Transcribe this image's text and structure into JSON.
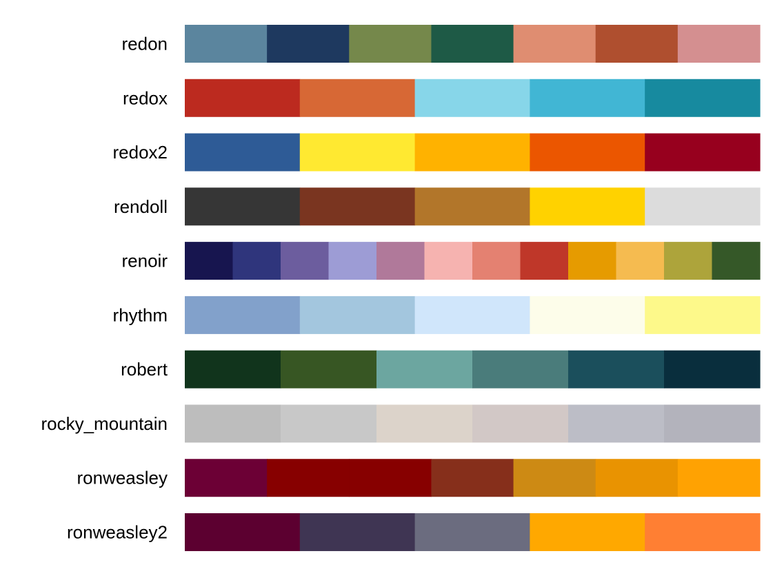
{
  "chart_data": {
    "type": "table",
    "palettes": [
      {
        "name": "redon",
        "colors": [
          "#5b859e",
          "#1e395f",
          "#75884b",
          "#1e5a46",
          "#df8d71",
          "#af4f2f",
          "#d48f90"
        ]
      },
      {
        "name": "redox",
        "colors": [
          "#bc2a1f",
          "#d76835",
          "#87d6e9",
          "#41b6d4",
          "#178a9f"
        ]
      },
      {
        "name": "redox2",
        "colors": [
          "#2e5b96",
          "#ffe931",
          "#ffb200",
          "#eb5600",
          "#97001e"
        ]
      },
      {
        "name": "rendoll",
        "colors": [
          "#363636",
          "#7a3520",
          "#b2762a",
          "#ffd200",
          "#dcdcdc"
        ]
      },
      {
        "name": "renoir",
        "colors": [
          "#17154f",
          "#2f357c",
          "#6c5d9e",
          "#9d9cd5",
          "#b0799a",
          "#f6b3b0",
          "#e48171",
          "#bf3729",
          "#e69b00",
          "#f5bb50",
          "#ada43b",
          "#355828"
        ]
      },
      {
        "name": "rhythm",
        "colors": [
          "#82a1cb",
          "#a3c6de",
          "#d0e6fb",
          "#fdfdea",
          "#fdf98a"
        ]
      },
      {
        "name": "robert",
        "colors": [
          "#11341c",
          "#375623",
          "#6ca6a0",
          "#4a7c7b",
          "#1b4f5c",
          "#092e3d"
        ]
      },
      {
        "name": "rocky_mountain",
        "colors": [
          "#bdbdbd",
          "#c8c8c8",
          "#dcd3ca",
          "#d2c8c6",
          "#bcbdc6",
          "#b3b3bc"
        ]
      },
      {
        "name": "ronweasley",
        "colors": [
          "#6c0035",
          "#870000",
          "#870000",
          "#862f1b",
          "#cd8a14",
          "#e99301",
          "#ffa202"
        ]
      },
      {
        "name": "ronweasley2",
        "colors": [
          "#5c0030",
          "#3f3553",
          "#6b6c7f",
          "#ffa800",
          "#ff7f33"
        ]
      }
    ]
  }
}
